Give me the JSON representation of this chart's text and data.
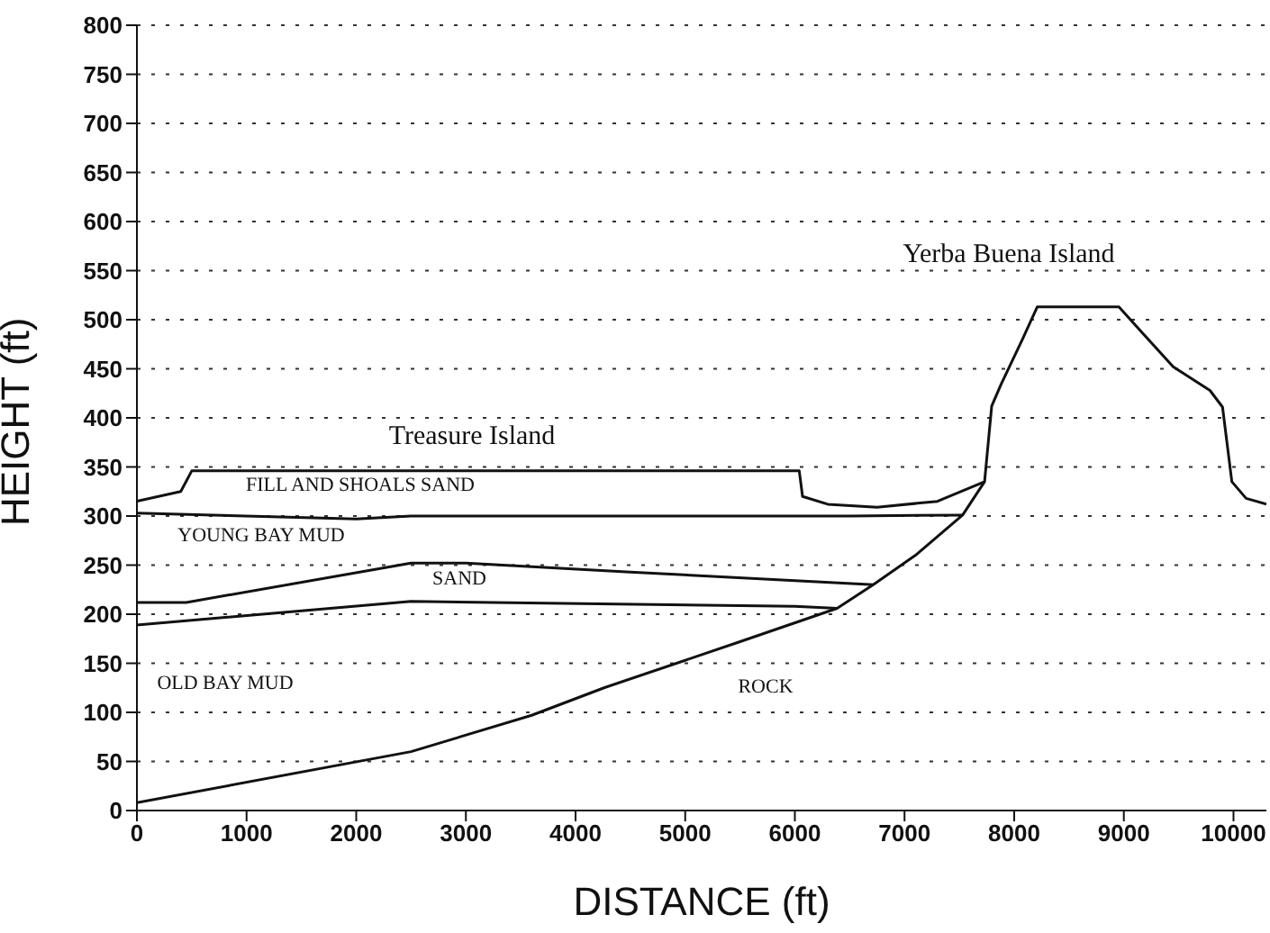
{
  "chart_data": {
    "type": "line",
    "xlabel": "DISTANCE  (ft)",
    "ylabel": "HEIGHT  (ft)",
    "xlim": [
      0,
      10300
    ],
    "xticks": [
      0,
      1000,
      2000,
      3000,
      4000,
      5000,
      6000,
      7000,
      8000,
      9000,
      10000
    ],
    "ylim": [
      0,
      800
    ],
    "yticks": [
      0,
      50,
      100,
      150,
      200,
      250,
      300,
      350,
      400,
      450,
      500,
      550,
      600,
      650,
      700,
      750,
      800
    ],
    "grid": "y",
    "marker": "none",
    "line_style": "solid",
    "series": [
      {
        "color": "#111111",
        "x": [
          0,
          400,
          500,
          6040,
          6070,
          6300,
          6750,
          7300,
          7730,
          7795,
          7880,
          8075,
          8210,
          8955,
          9450,
          9785,
          9900,
          9985,
          10115,
          10300
        ],
        "values": [
          315,
          325,
          346,
          346,
          320,
          312,
          309,
          315,
          335,
          412,
          434,
          480,
          513,
          513,
          452,
          428,
          411,
          335,
          318,
          312
        ]
      },
      {
        "color": "#111111",
        "x": [
          0,
          2000,
          2500,
          6500,
          7530
        ],
        "values": [
          303,
          297,
          300,
          300,
          301
        ]
      },
      {
        "color": "#111111",
        "x": [
          0,
          450,
          2500,
          3000,
          4500,
          6715
        ],
        "values": [
          212,
          212,
          252,
          252,
          243,
          230
        ]
      },
      {
        "color": "#111111",
        "x": [
          0,
          2500,
          6000,
          6385
        ],
        "values": [
          189,
          213,
          208,
          206
        ]
      },
      {
        "color": "#111111",
        "x": [
          0,
          2500,
          3600,
          4260,
          5500,
          6385,
          6715,
          7100,
          7530,
          7730
        ],
        "values": [
          8,
          60,
          97,
          125,
          172,
          206,
          230,
          260,
          301,
          335
        ]
      }
    ],
    "annotations": [
      "Treasure Island",
      "Yerba Buena Island",
      "FILL AND SHOALS SAND",
      "YOUNG BAY MUD",
      "SAND",
      "OLD BAY MUD",
      "ROCK"
    ]
  }
}
